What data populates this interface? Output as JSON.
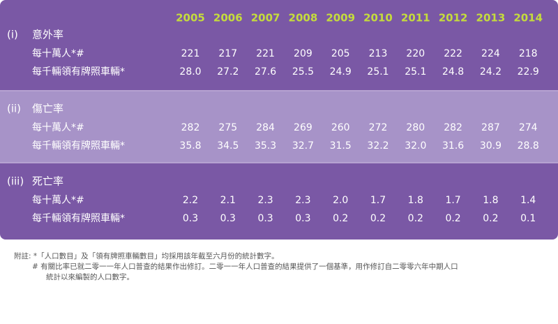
{
  "table": {
    "years": [
      "2005",
      "2006",
      "2007",
      "2008",
      "2009",
      "2010",
      "2011",
      "2012",
      "2013",
      "2014"
    ],
    "sections": [
      {
        "number": "(i)",
        "title": "意外率",
        "rows": [
          {
            "label": "每十萬人*#",
            "values": [
              "221",
              "217",
              "221",
              "209",
              "205",
              "213",
              "220",
              "222",
              "224",
              "218"
            ]
          },
          {
            "label": "每千輛領有牌照車輛*",
            "values": [
              "28.0",
              "27.2",
              "27.6",
              "25.5",
              "24.9",
              "25.1",
              "25.1",
              "24.8",
              "24.2",
              "22.9"
            ]
          }
        ]
      },
      {
        "number": "(ii)",
        "title": "傷亡率",
        "rows": [
          {
            "label": "每十萬人*#",
            "values": [
              "282",
              "275",
              "284",
              "269",
              "260",
              "272",
              "280",
              "282",
              "287",
              "274"
            ]
          },
          {
            "label": "每千輛領有牌照車輛*",
            "values": [
              "35.8",
              "34.5",
              "35.3",
              "32.7",
              "31.5",
              "32.2",
              "32.0",
              "31.6",
              "30.9",
              "28.8"
            ]
          }
        ]
      },
      {
        "number": "(iii)",
        "title": "死亡率",
        "rows": [
          {
            "label": "每十萬人*#",
            "values": [
              "2.2",
              "2.1",
              "2.3",
              "2.3",
              "2.0",
              "1.7",
              "1.8",
              "1.7",
              "1.8",
              "1.4"
            ]
          },
          {
            "label": "每千輛領有牌照車輛*",
            "values": [
              "0.3",
              "0.3",
              "0.3",
              "0.3",
              "0.2",
              "0.2",
              "0.2",
              "0.2",
              "0.2",
              "0.1"
            ]
          }
        ]
      }
    ]
  },
  "notes": [
    "附註: *「人口數目」及「領有牌照車輛數目」均採用該年截至六月份的統計數字。",
    "# 有關比率已就二零一一年人口普查的結果作出修訂。二零一一年人口普查的結果提供了一個基準，用作修訂自二零零六年中期人口",
    "統計以來編製的人口數字。"
  ]
}
